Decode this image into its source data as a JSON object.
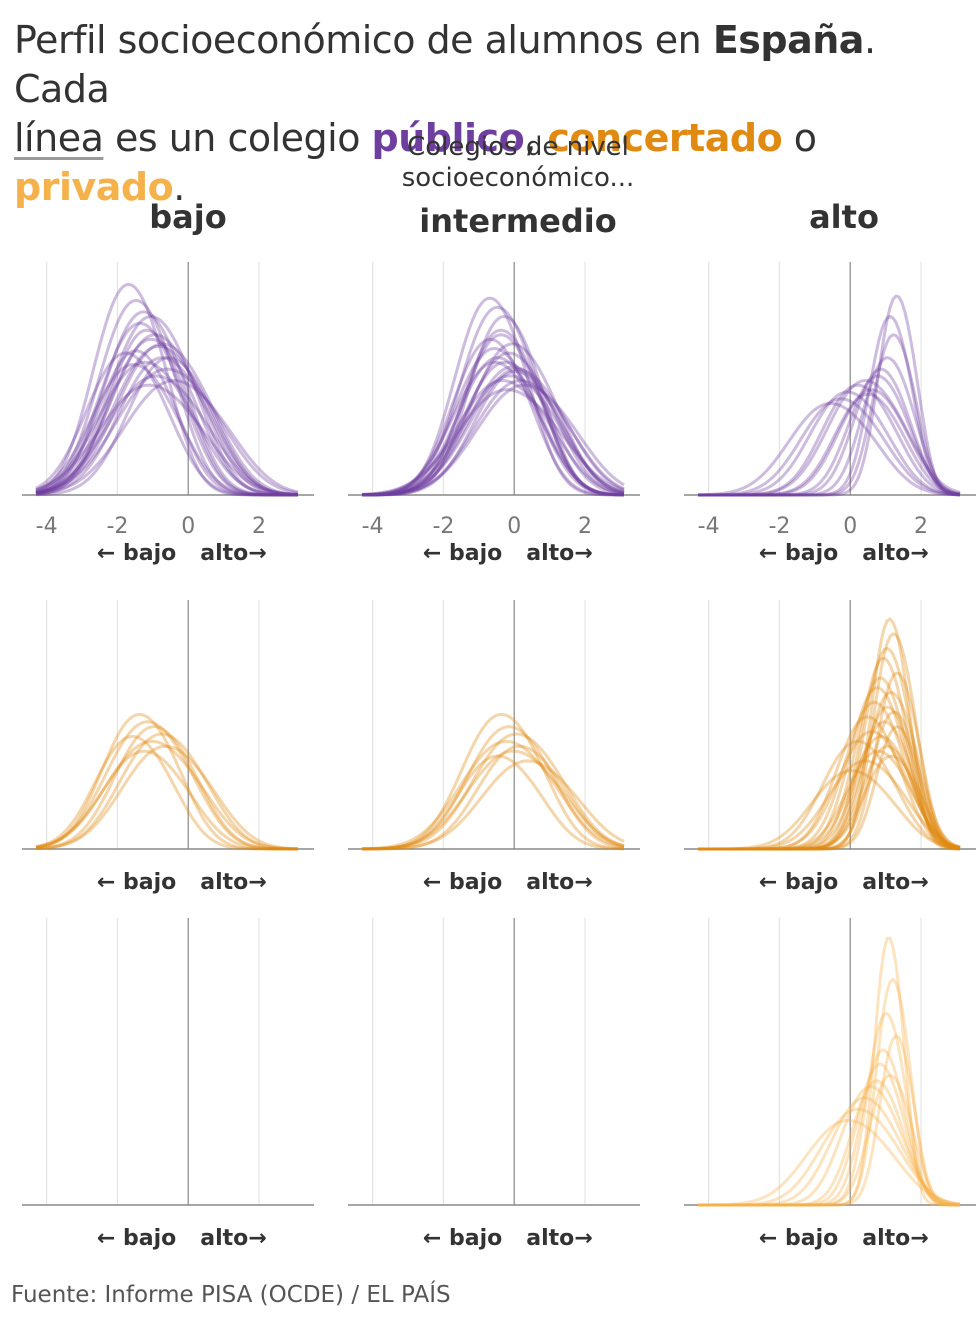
{
  "title": {
    "part1": "Perfil socioeconómico de alumnos en ",
    "country": "España",
    "part2": ". Cada ",
    "line_word": "línea",
    "part3": " es un colegio ",
    "publico": "público",
    "sep1": ", ",
    "concertado": "concertado",
    "sep2": " o ",
    "privado": "privado",
    "end": "."
  },
  "column_intro": "Colegios de nivel socioeconómico...",
  "columns": [
    "bajo",
    "intermedio",
    "alto"
  ],
  "source": "Fuente: Informe PISA (OCDE) / EL PAÍS",
  "colors": {
    "publico": "#6f3fa0",
    "concertado": "#e08a12",
    "privado": "#f5b24a",
    "axis": "#888888",
    "grid": "#e4e4e4",
    "text": "#333333"
  },
  "chart_data": {
    "type": "line",
    "description_of_marks": "density curves, one per school",
    "x_ticks": [
      -4,
      -2,
      0,
      2
    ],
    "xlim": [
      -4.3,
      3.1
    ],
    "direction_labels": {
      "low": "← bajo",
      "high": "alto→"
    },
    "rows": [
      {
        "type_key": "publico",
        "show_ticks": true,
        "panels": [
          {
            "column": "bajo",
            "peak_means": [
              -1.9,
              -1.7,
              -1.5,
              -1.3,
              -1.2,
              -1.0,
              -0.8,
              -1.6,
              -1.4,
              -1.1,
              -2.0,
              -0.9,
              -1.3,
              -1.5,
              -1.7,
              -1.0,
              -1.2,
              -1.4,
              -1.8,
              -0.7
            ],
            "peak_heights": [
              0.92,
              0.85,
              0.8,
              0.78,
              0.7,
              0.66,
              0.6,
              0.75,
              0.72,
              0.65,
              0.62,
              0.55,
              0.68,
              0.58,
              0.63,
              0.6,
              0.52,
              0.48,
              0.57,
              0.5
            ],
            "spread": [
              0.85,
              0.9,
              0.95,
              1.0,
              1.05,
              1.1,
              1.0,
              0.95,
              0.9,
              1.1,
              0.95,
              1.2,
              1.0,
              1.1,
              0.9,
              1.05,
              1.15,
              1.2,
              1.0,
              1.2
            ]
          },
          {
            "column": "intermedio",
            "peak_means": [
              -0.9,
              -0.7,
              -0.5,
              -0.3,
              -0.6,
              -0.4,
              -0.2,
              -0.8,
              -0.1,
              -0.5,
              -0.6,
              -0.3,
              -0.7,
              -0.4,
              -0.9,
              0.0,
              -0.2,
              -0.5,
              -0.8,
              -0.6
            ],
            "peak_heights": [
              0.86,
              0.82,
              0.78,
              0.66,
              0.7,
              0.62,
              0.55,
              0.64,
              0.5,
              0.58,
              0.72,
              0.56,
              0.6,
              0.52,
              0.68,
              0.48,
              0.54,
              0.46,
              0.58,
              0.5
            ],
            "spread": [
              0.85,
              0.9,
              0.85,
              1.0,
              0.9,
              1.0,
              1.1,
              0.95,
              1.1,
              1.0,
              0.9,
              1.05,
              0.95,
              1.1,
              0.9,
              1.15,
              1.0,
              1.2,
              1.0,
              1.1
            ]
          },
          {
            "column": "alto",
            "peak_means": [
              1.2,
              1.0,
              0.9,
              0.6,
              0.4,
              0.2,
              0.0,
              -0.3,
              -0.5,
              -0.8,
              0.7,
              1.1,
              0.3
            ],
            "peak_heights": [
              0.87,
              0.78,
              0.6,
              0.52,
              0.46,
              0.5,
              0.48,
              0.45,
              0.42,
              0.4,
              0.55,
              0.7,
              0.44
            ],
            "spread": [
              0.45,
              0.5,
              0.6,
              0.7,
              0.8,
              0.9,
              0.85,
              0.9,
              0.95,
              1.0,
              0.65,
              0.5,
              0.8
            ]
          }
        ]
      },
      {
        "type_key": "concertado",
        "show_ticks": false,
        "panels": [
          {
            "column": "bajo",
            "peak_means": [
              -1.6,
              -1.4,
              -1.2,
              -1.0,
              -1.8,
              -1.3,
              -0.9,
              -1.5
            ],
            "peak_heights": [
              0.55,
              0.52,
              0.5,
              0.47,
              0.46,
              0.44,
              0.42,
              0.4
            ],
            "spread": [
              0.9,
              1.0,
              0.95,
              1.0,
              0.9,
              1.1,
              1.05,
              1.0
            ]
          },
          {
            "column": "intermedio",
            "peak_means": [
              -0.6,
              -0.4,
              -0.2,
              -0.5,
              -0.1,
              -0.3,
              -0.7,
              0.1
            ],
            "peak_heights": [
              0.55,
              0.5,
              0.47,
              0.44,
              0.42,
              0.4,
              0.38,
              0.36
            ],
            "spread": [
              0.95,
              1.0,
              1.05,
              1.1,
              1.0,
              1.1,
              0.95,
              1.1
            ]
          },
          {
            "column": "alto",
            "peak_means": [
              1.0,
              1.1,
              0.9,
              0.8,
              1.2,
              0.7,
              0.6,
              1.0,
              0.5,
              0.9,
              1.1,
              0.3,
              0.8,
              1.2,
              0.4,
              0.7,
              0.0,
              0.9,
              0.6,
              1.0,
              0.2,
              -0.2
            ],
            "peak_heights": [
              0.94,
              0.88,
              0.82,
              0.78,
              0.72,
              0.7,
              0.66,
              0.64,
              0.6,
              0.58,
              0.56,
              0.54,
              0.52,
              0.5,
              0.48,
              0.46,
              0.44,
              0.42,
              0.4,
              0.38,
              0.36,
              0.32
            ],
            "spread": [
              0.45,
              0.5,
              0.55,
              0.55,
              0.5,
              0.6,
              0.65,
              0.6,
              0.7,
              0.6,
              0.55,
              0.75,
              0.65,
              0.5,
              0.8,
              0.7,
              0.85,
              0.6,
              0.75,
              0.65,
              0.9,
              0.95
            ]
          }
        ]
      },
      {
        "type_key": "privado",
        "show_ticks": false,
        "panels": [
          {
            "column": "bajo",
            "peak_means": [],
            "peak_heights": [],
            "spread": []
          },
          {
            "column": "intermedio",
            "peak_means": [],
            "peak_heights": [],
            "spread": []
          },
          {
            "column": "alto",
            "peak_means": [
              1.0,
              1.1,
              0.9,
              1.2,
              0.8,
              0.7,
              1.0,
              0.6,
              0.4,
              0.2,
              0.0,
              -0.3
            ],
            "peak_heights": [
              0.95,
              0.8,
              0.68,
              0.6,
              0.55,
              0.5,
              0.46,
              0.44,
              0.42,
              0.38,
              0.34,
              0.3
            ],
            "spread": [
              0.35,
              0.4,
              0.45,
              0.4,
              0.5,
              0.55,
              0.5,
              0.6,
              0.7,
              0.8,
              0.9,
              1.0
            ]
          }
        ]
      }
    ]
  }
}
